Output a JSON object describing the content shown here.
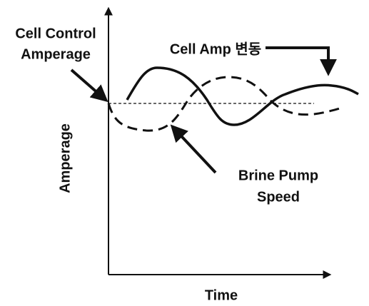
{
  "labels": {
    "cell_control": [
      "Cell Control",
      "Amperage"
    ],
    "cell_amp": "Cell Amp 변동",
    "brine_pump": [
      "Brine Pump",
      "Speed"
    ],
    "y_axis": "Amperage",
    "x_axis": "Time"
  }
}
